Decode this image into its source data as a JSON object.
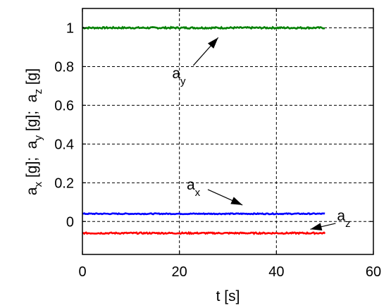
{
  "chart_data": {
    "type": "line",
    "title": "",
    "xlabel": "t [s]",
    "ylabel": {
      "parts": [
        {
          "base": "a",
          "sub": "x",
          "unit": " [g];  "
        },
        {
          "base": "a",
          "sub": "y",
          "unit": " [g];  "
        },
        {
          "base": "a",
          "sub": "z",
          "unit": " [g]"
        }
      ]
    },
    "xlim": [
      0,
      60
    ],
    "ylim": [
      -0.17,
      1.1
    ],
    "xticks": [
      0,
      20,
      40,
      60
    ],
    "yticks": [
      0,
      0.2,
      0.4,
      0.6,
      0.8,
      1
    ],
    "xtick_labels": [
      "0",
      "20",
      "40",
      "60"
    ],
    "ytick_labels": [
      "0",
      "0.2",
      "0.4",
      "0.6",
      "0.8",
      "1"
    ],
    "grid": true,
    "series": [
      {
        "name": "a_y",
        "color": "#008000",
        "x": [
          0,
          50
        ],
        "y": [
          1.0,
          1.0
        ],
        "noise": 0.004
      },
      {
        "name": "a_x",
        "color": "#0000ff",
        "x": [
          0,
          50
        ],
        "y": [
          0.04,
          0.04
        ],
        "noise": 0.0025
      },
      {
        "name": "a_z",
        "color": "#ff0000",
        "x": [
          0,
          50
        ],
        "y": [
          -0.06,
          -0.06
        ],
        "noise": 0.0035
      }
    ],
    "annotations": [
      {
        "base": "a",
        "sub": "y",
        "text_at": [
          18.5,
          0.74
        ],
        "arrow_to": [
          28,
          0.95
        ]
      },
      {
        "base": "a",
        "sub": "x",
        "text_at": [
          21.5,
          0.165
        ],
        "arrow_to": [
          33,
          0.085
        ]
      },
      {
        "base": "a",
        "sub": "z",
        "text_at": [
          52.5,
          0.005
        ],
        "arrow_to": [
          47,
          -0.04
        ]
      }
    ]
  }
}
